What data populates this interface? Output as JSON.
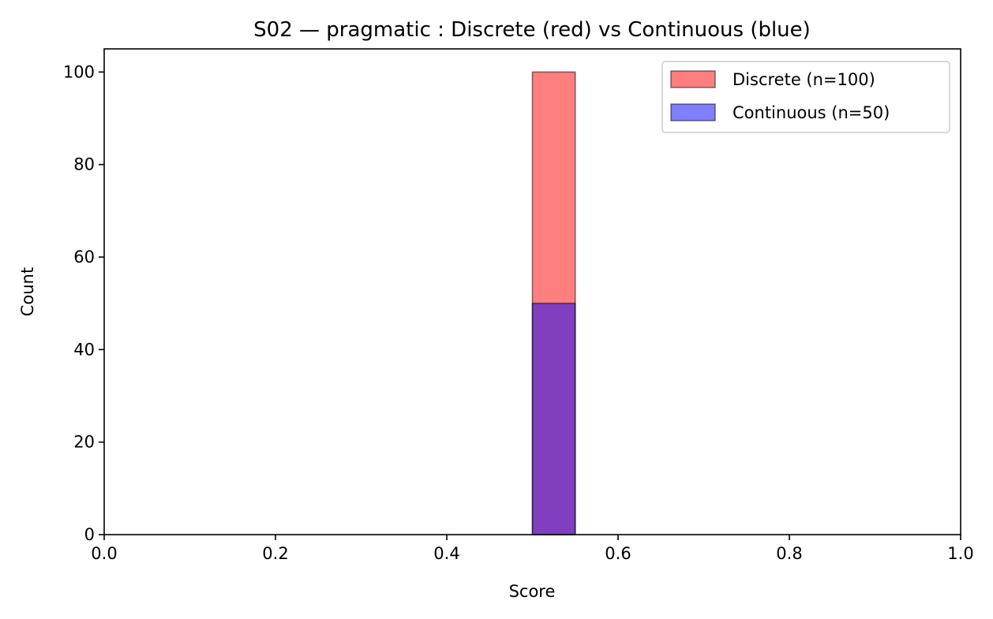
{
  "chart_data": {
    "type": "histogram",
    "title": "S02 — pragmatic : Discrete (red) vs Continuous (blue)",
    "xlabel": "Score",
    "ylabel": "Count",
    "xlim": [
      0.0,
      1.0
    ],
    "ylim": [
      0,
      105
    ],
    "xticks": [
      0.0,
      0.2,
      0.4,
      0.6,
      0.8,
      1.0
    ],
    "xtick_labels": [
      "0.0",
      "0.2",
      "0.4",
      "0.6",
      "0.8",
      "1.0"
    ],
    "yticks": [
      0,
      20,
      40,
      60,
      80,
      100
    ],
    "ytick_labels": [
      "0",
      "20",
      "40",
      "60",
      "80",
      "100"
    ],
    "grid": false,
    "legend_position": "top-right",
    "series": [
      {
        "name": "Discrete (n=100)",
        "color": "#ff0000",
        "alpha": 0.5,
        "bins": [
          {
            "x0": 0.5,
            "x1": 0.55,
            "count": 100
          }
        ]
      },
      {
        "name": "Continuous (n=50)",
        "color": "#0000ff",
        "alpha": 0.5,
        "bins": [
          {
            "x0": 0.5,
            "x1": 0.55,
            "count": 50
          }
        ]
      }
    ]
  }
}
